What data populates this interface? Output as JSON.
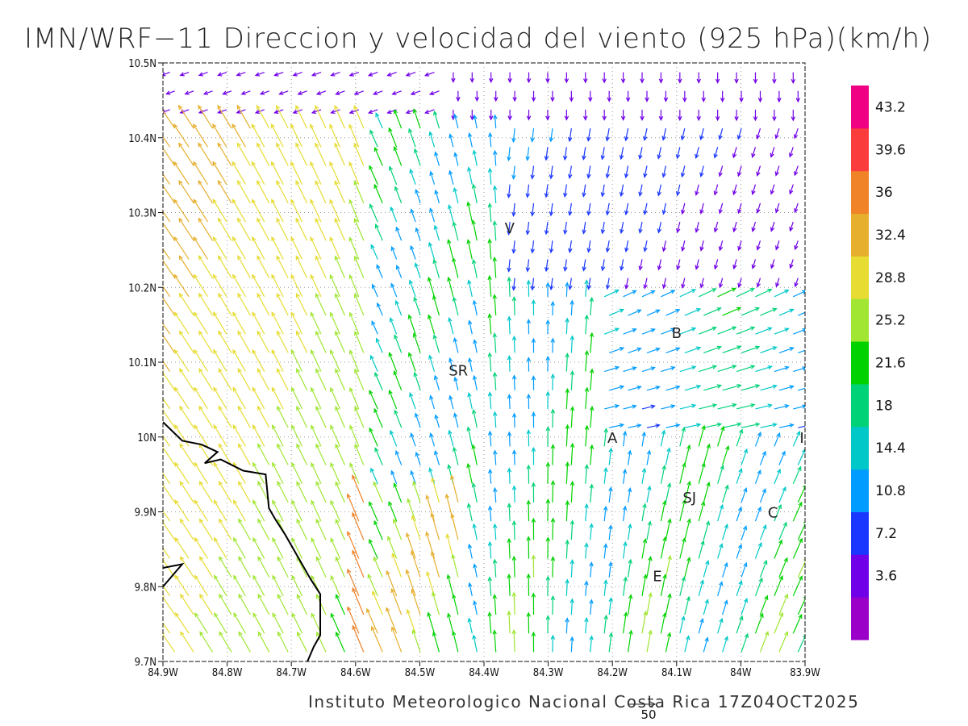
{
  "title": "IMN/WRF−11 Direccion y velocidad del viento (925 hPa)(km/h)",
  "footer": "Instituto Meteorologico Nacional Costa Rica 17Z04OCT2025",
  "reference_vector": {
    "value": 50,
    "label": "50"
  },
  "map": {
    "lon_range": [
      -84.9,
      -83.9
    ],
    "lat_range": [
      9.7,
      10.5
    ],
    "grid": true,
    "x_ticks": [
      {
        "value": -84.9,
        "label": "84.9W"
      },
      {
        "value": -84.8,
        "label": "84.8W"
      },
      {
        "value": -84.7,
        "label": "84.7W"
      },
      {
        "value": -84.6,
        "label": "84.6W"
      },
      {
        "value": -84.5,
        "label": "84.5W"
      },
      {
        "value": -84.4,
        "label": "84.4W"
      },
      {
        "value": -84.3,
        "label": "84.3W"
      },
      {
        "value": -84.2,
        "label": "84.2W"
      },
      {
        "value": -84.1,
        "label": "84.1W"
      },
      {
        "value": -84.0,
        "label": "84W"
      },
      {
        "value": -83.9,
        "label": "83.9W"
      }
    ],
    "y_ticks": [
      {
        "value": 9.7,
        "label": "9.7N"
      },
      {
        "value": 9.8,
        "label": "9.8N"
      },
      {
        "value": 9.9,
        "label": "9.9N"
      },
      {
        "value": 10.0,
        "label": "10N"
      },
      {
        "value": 10.1,
        "label": "10.1N"
      },
      {
        "value": 10.2,
        "label": "10.2N"
      },
      {
        "value": 10.3,
        "label": "10.3N"
      },
      {
        "value": 10.4,
        "label": "10.4N"
      },
      {
        "value": 10.5,
        "label": "10.5N"
      }
    ],
    "places": [
      {
        "label": "V",
        "lon": -84.36,
        "lat": 10.28
      },
      {
        "label": "SR",
        "lon": -84.44,
        "lat": 10.09
      },
      {
        "label": "B",
        "lon": -84.1,
        "lat": 10.14
      },
      {
        "label": "A",
        "lon": -84.2,
        "lat": 10.0
      },
      {
        "label": "I",
        "lon": -83.905,
        "lat": 10.0
      },
      {
        "label": "SJ",
        "lon": -84.08,
        "lat": 9.92
      },
      {
        "label": "C",
        "lon": -83.95,
        "lat": 9.9
      },
      {
        "label": "E",
        "lon": -84.13,
        "lat": 9.815
      }
    ],
    "coastline": [
      [
        -84.9,
        10.02
      ],
      [
        -84.87,
        9.995
      ],
      [
        -84.84,
        9.99
      ],
      [
        -84.815,
        9.98
      ],
      [
        -84.835,
        9.965
      ],
      [
        -84.81,
        9.97
      ],
      [
        -84.775,
        9.955
      ],
      [
        -84.74,
        9.95
      ],
      [
        -84.735,
        9.905
      ],
      [
        -84.725,
        9.89
      ],
      [
        -84.71,
        9.87
      ],
      [
        -84.69,
        9.84
      ],
      [
        -84.67,
        9.81
      ],
      [
        -84.655,
        9.79
      ],
      [
        -84.655,
        9.735
      ],
      [
        -84.665,
        9.72
      ],
      [
        -84.675,
        9.7
      ]
    ],
    "coastline_nicoya": [
      [
        -84.9,
        9.825
      ],
      [
        -84.87,
        9.83
      ],
      [
        -84.9,
        9.8
      ]
    ]
  },
  "colorbar": {
    "colors": [
      "#9a00c8",
      "#7000e8",
      "#1a37ff",
      "#009cff",
      "#00c8c8",
      "#00d278",
      "#00d200",
      "#a0e632",
      "#e6dc32",
      "#e6af2d",
      "#f08228",
      "#fa3c3c",
      "#f00082"
    ],
    "labels": [
      "3.6",
      "7.2",
      "10.8",
      "14.4",
      "18",
      "21.6",
      "25.2",
      "28.8",
      "32.4",
      "36",
      "39.6",
      "43.2"
    ]
  }
}
